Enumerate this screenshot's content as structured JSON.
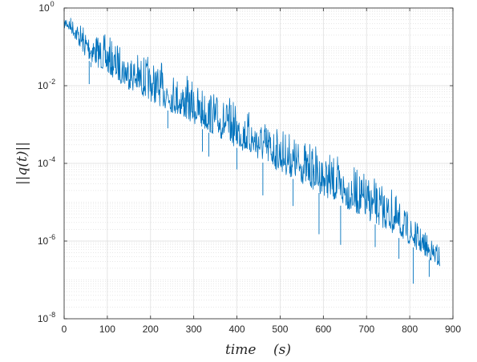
{
  "chart_data": {
    "type": "line",
    "title": "",
    "xlabel": "time    (s)",
    "ylabel": "||q(t)||",
    "xlim": [
      0,
      900
    ],
    "ylim": [
      1e-08,
      1
    ],
    "yscale": "log",
    "grid": true,
    "minor_grid": true,
    "legend": "none",
    "x_ticks": [
      0,
      100,
      200,
      300,
      400,
      500,
      600,
      700,
      800,
      900
    ],
    "x_tick_labels": [
      "0",
      "100",
      "200",
      "300",
      "400",
      "500",
      "600",
      "700",
      "800",
      "900"
    ],
    "y_ticks": [
      {
        "value": 1,
        "base": "10",
        "exp": "0"
      },
      {
        "value": 0.01,
        "base": "10",
        "exp": "-2"
      },
      {
        "value": 0.0001,
        "base": "10",
        "exp": "-4"
      },
      {
        "value": 1e-06,
        "base": "10",
        "exp": "-6"
      },
      {
        "value": 1e-08,
        "base": "10",
        "exp": "-8"
      }
    ],
    "series": [
      {
        "color": "#0072bd",
        "x": [
          0,
          5,
          20,
          50,
          100,
          150,
          200,
          250,
          300,
          350,
          400,
          450,
          500,
          550,
          600,
          650,
          700,
          750,
          800,
          850,
          870
        ],
        "y_upper": [
          0.5,
          0.8,
          0.6,
          0.4,
          0.2,
          0.1,
          0.06,
          0.03,
          0.015,
          0.008,
          0.004,
          0.002,
          0.001,
          0.0005,
          0.00025,
          0.00012,
          6e-05,
          3e-05,
          5e-06,
          1.3e-06,
          9e-07
        ],
        "y_lower": [
          0.3,
          0.3,
          0.2,
          0.05,
          0.02,
          0.008,
          0.004,
          0.002,
          0.001,
          0.0005,
          0.00025,
          0.00012,
          6e-05,
          3e-05,
          1.5e-05,
          7e-06,
          3.5e-06,
          1.8e-06,
          8e-07,
          3e-07,
          2e-07
        ],
        "spikes": [
          {
            "x": 58,
            "y": 0.011
          },
          {
            "x": 62,
            "y": 0.03
          },
          {
            "x": 240,
            "y": 0.0008
          },
          {
            "x": 320,
            "y": 0.0002
          },
          {
            "x": 335,
            "y": 0.00015
          },
          {
            "x": 400,
            "y": 7e-05
          },
          {
            "x": 460,
            "y": 1.5e-05
          },
          {
            "x": 530,
            "y": 8e-06
          },
          {
            "x": 590,
            "y": 1.5e-06
          },
          {
            "x": 640,
            "y": 8e-07
          },
          {
            "x": 720,
            "y": 7e-07
          },
          {
            "x": 775,
            "y": 3.5e-07
          },
          {
            "x": 808,
            "y": 8e-08
          },
          {
            "x": 845,
            "y": 1.2e-07
          }
        ]
      }
    ]
  }
}
